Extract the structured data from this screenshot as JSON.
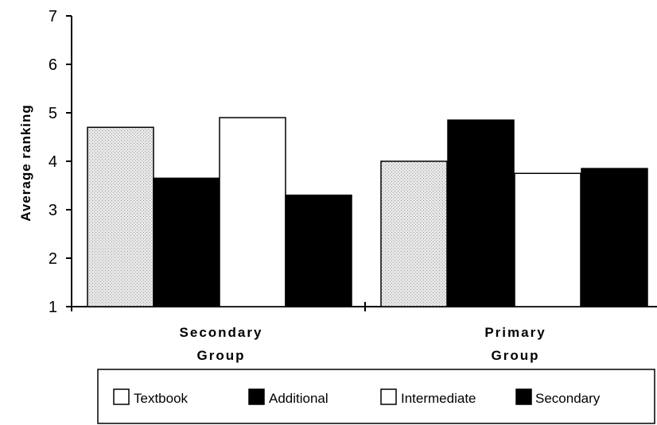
{
  "chart_data": {
    "type": "bar",
    "title": "",
    "xlabel": "",
    "ylabel": "Average  ranking",
    "ylim": [
      1,
      7
    ],
    "yticks": [
      "1",
      "2",
      "3",
      "4",
      "5",
      "6",
      "7"
    ],
    "categories": [
      {
        "line1": "Secondary",
        "line2": "Group"
      },
      {
        "line1": "Primary",
        "line2": "Group"
      }
    ],
    "series": [
      {
        "name": "Textbook",
        "values": [
          4.7,
          4.0
        ],
        "color": "#d8d8d8",
        "fill": "stipple"
      },
      {
        "name": "Additional",
        "values": [
          3.65,
          4.85
        ],
        "color": "#000000",
        "fill": "solid"
      },
      {
        "name": "Intermediate",
        "values": [
          4.9,
          3.75
        ],
        "color": "#ffffff",
        "fill": "solid"
      },
      {
        "name": "Secondary",
        "values": [
          3.3,
          3.85
        ],
        "color": "#000000",
        "fill": "solid"
      }
    ],
    "grid": false,
    "legend_position": "bottom"
  }
}
